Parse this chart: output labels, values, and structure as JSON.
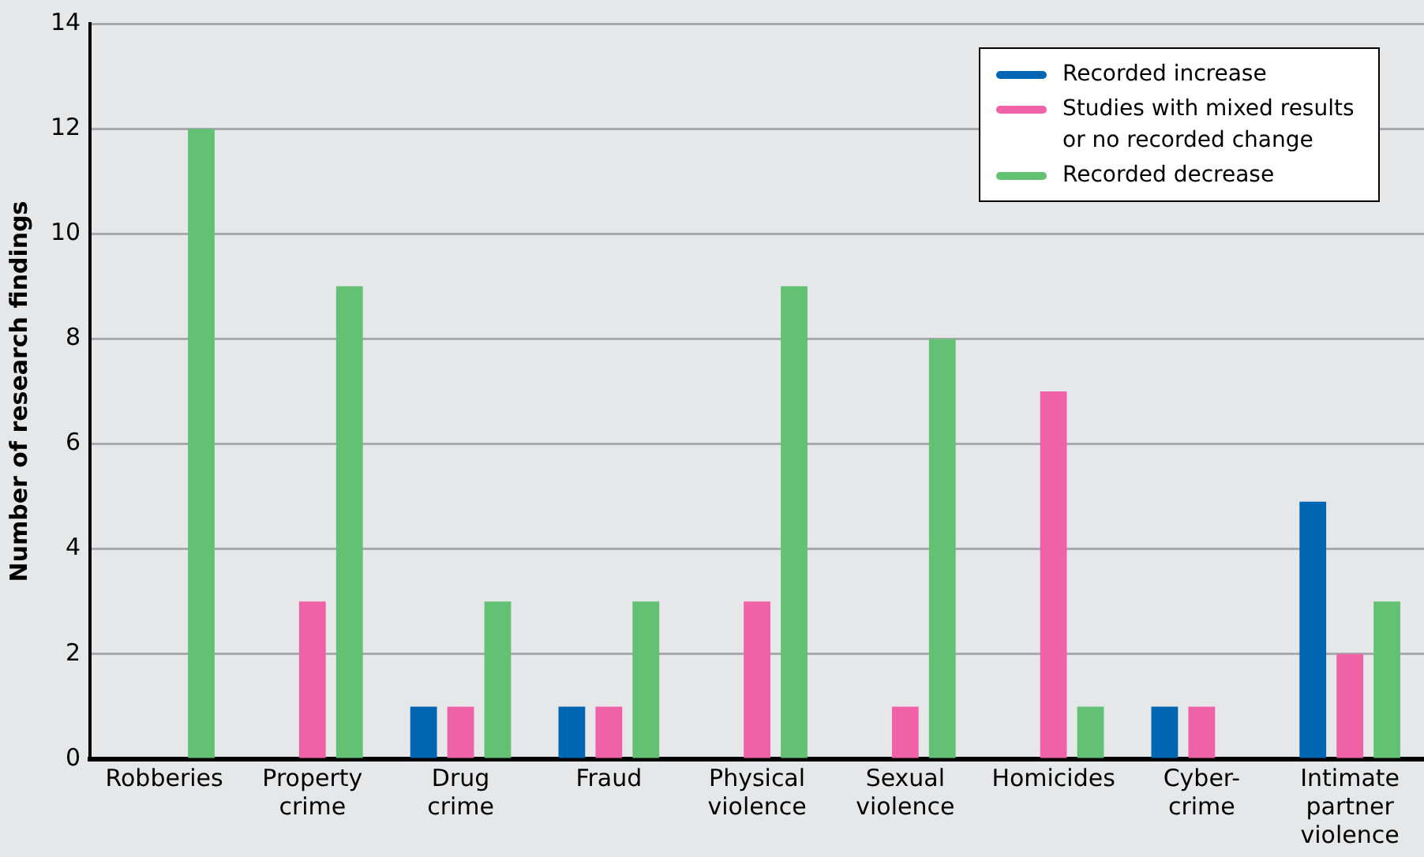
{
  "chart_data": {
    "type": "bar",
    "ylabel": "Number of research findings",
    "categories": [
      "Robberies",
      "Property crime",
      "Drug crime",
      "Fraud",
      "Physical violence",
      "Sexual violence",
      "Homicides",
      "Cyber-crime",
      "Intimate partner violence"
    ],
    "series": [
      {
        "name": "Recorded increase",
        "color": "#0066b3",
        "values": [
          null,
          null,
          1,
          1,
          null,
          null,
          null,
          1,
          4.9
        ]
      },
      {
        "name": "Studies with mixed results or no recorded change",
        "color": "#f062a8",
        "values": [
          null,
          3,
          1,
          1,
          3,
          1,
          7,
          1,
          2
        ]
      },
      {
        "name": "Recorded decrease",
        "color": "#62c173",
        "values": [
          12,
          9,
          3,
          3,
          9,
          8,
          1,
          null,
          3
        ]
      }
    ],
    "ylim": [
      0,
      14
    ],
    "yticks": [
      0,
      2,
      4,
      6,
      8,
      10,
      12,
      14
    ],
    "grid": "y",
    "legend": "top right"
  }
}
